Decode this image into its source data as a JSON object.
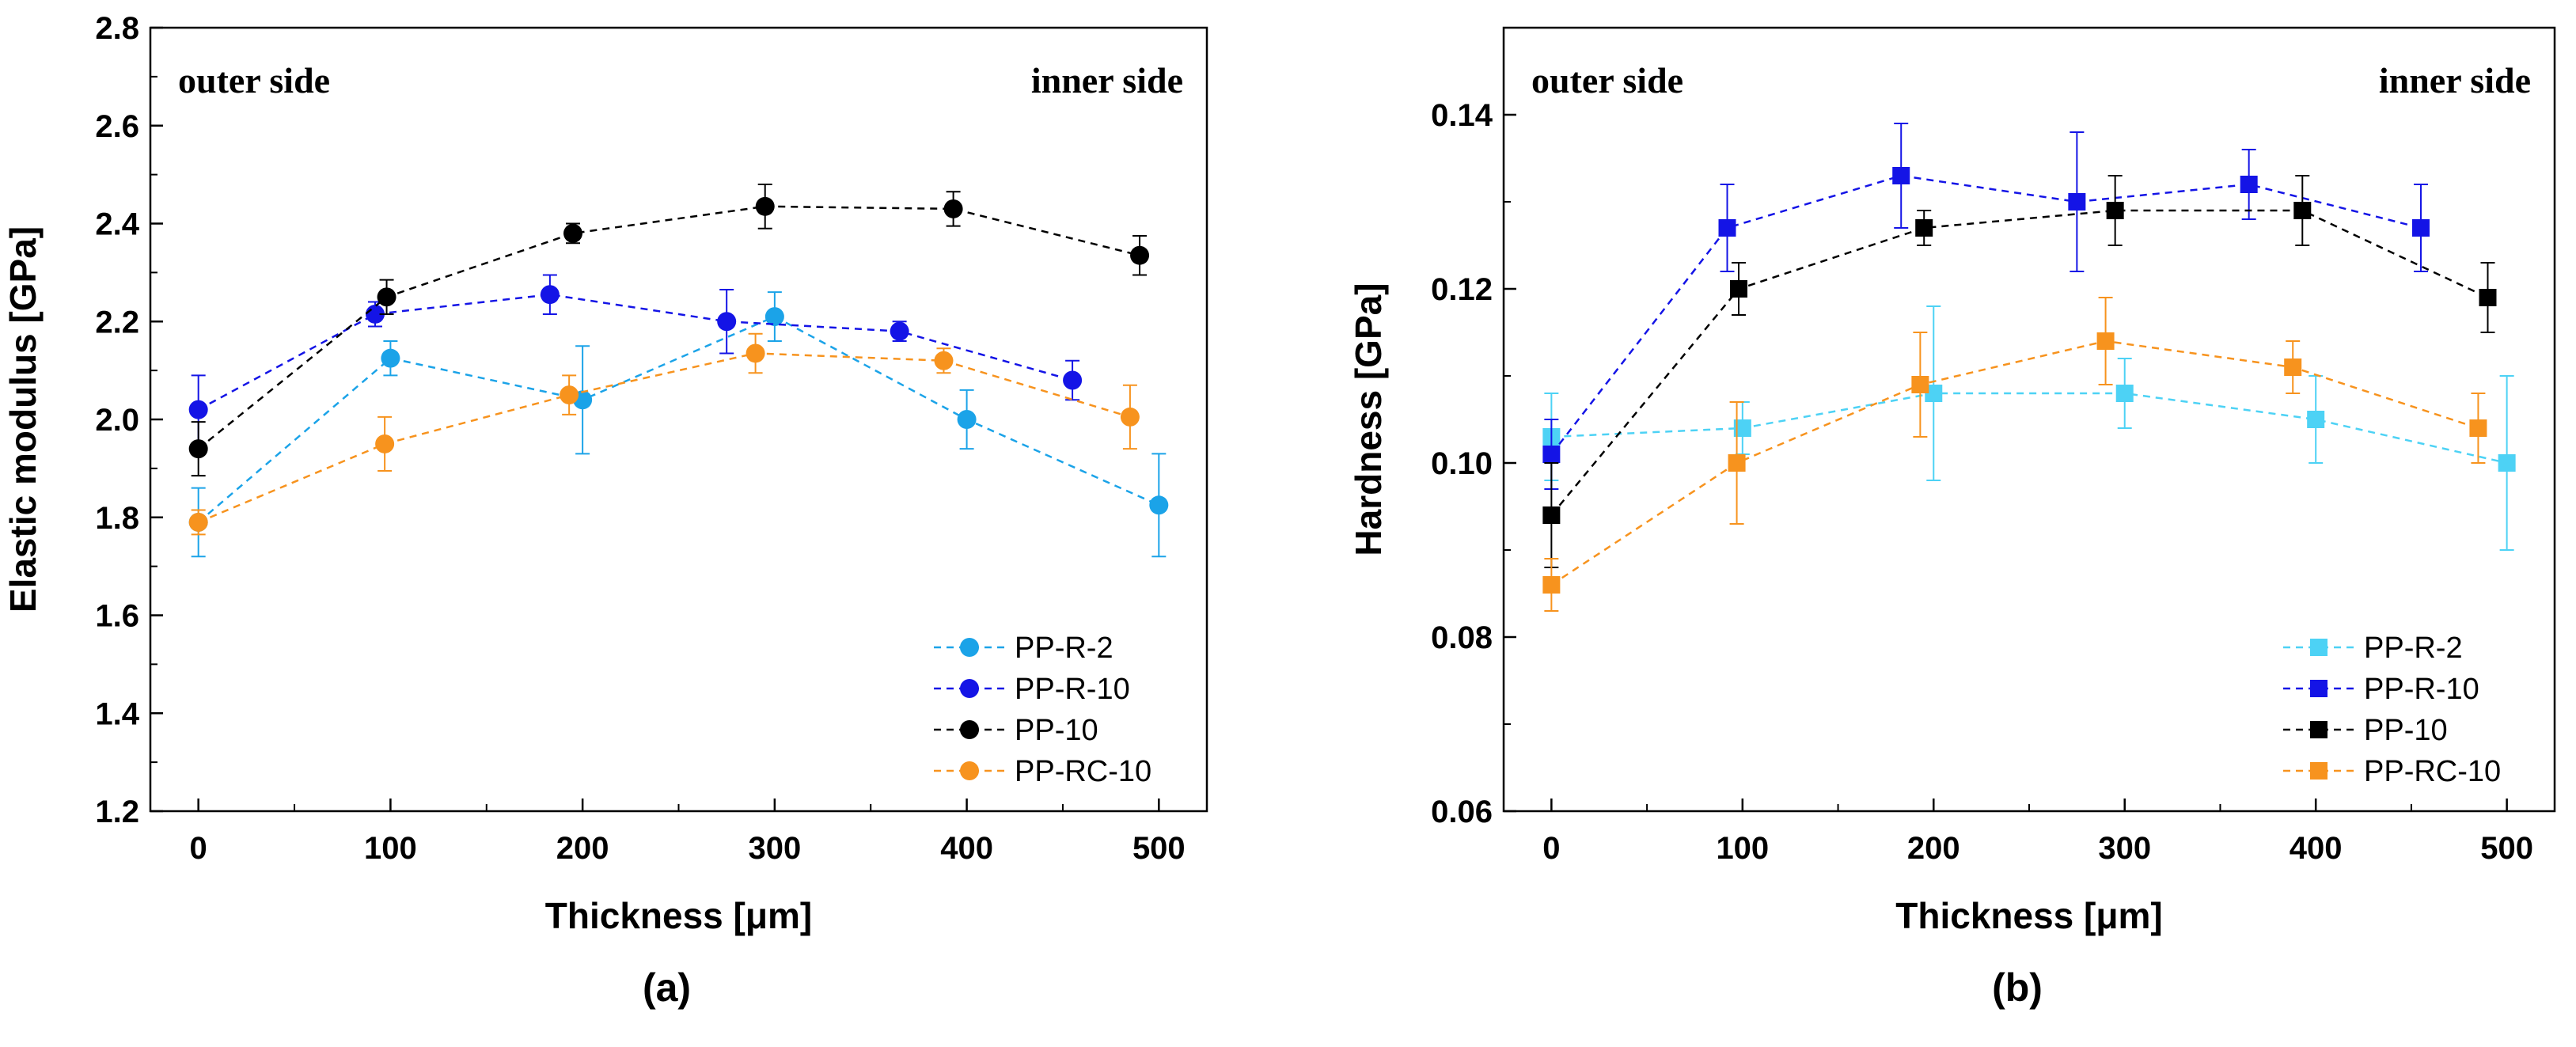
{
  "chart_data": [
    {
      "type": "line",
      "panel_label": "(a)",
      "xlabel": "Thickness [μm]",
      "ylabel": "Elastic modulus [GPa]",
      "xlim": [
        -25,
        525
      ],
      "ylim": [
        1.2,
        2.8
      ],
      "xticks": [
        0,
        100,
        200,
        300,
        400,
        500
      ],
      "xtick_labels": [
        "0",
        "100",
        "200",
        "300",
        "400",
        "500"
      ],
      "yticks": [
        1.2,
        1.4,
        1.6,
        1.8,
        2.0,
        2.2,
        2.4,
        2.6,
        2.8
      ],
      "ytick_labels": [
        "1.2",
        "1.4",
        "1.6",
        "1.8",
        "2.0",
        "2.2",
        "2.4",
        "2.6",
        "2.8"
      ],
      "annotations": [
        "outer side",
        "inner side"
      ],
      "marker": "circle",
      "series": [
        {
          "name": "PP-R-2",
          "color": "#1ba3e8",
          "x": [
            0,
            100,
            200,
            300,
            400,
            500
          ],
          "y": [
            1.79,
            2.125,
            2.04,
            2.21,
            2.0,
            1.825
          ],
          "err": [
            0.07,
            0.035,
            0.11,
            0.05,
            0.06,
            0.105
          ]
        },
        {
          "name": "PP-R-10",
          "color": "#1414e6",
          "x": [
            0,
            92,
            183,
            275,
            365,
            455
          ],
          "y": [
            2.02,
            2.215,
            2.255,
            2.2,
            2.18,
            2.08
          ],
          "err": [
            0.07,
            0.025,
            0.04,
            0.065,
            0.02,
            0.04
          ]
        },
        {
          "name": "PP-10",
          "color": "#000000",
          "x": [
            0,
            98,
            195,
            295,
            393,
            490
          ],
          "y": [
            1.94,
            2.25,
            2.38,
            2.435,
            2.43,
            2.335
          ],
          "err": [
            0.055,
            0.035,
            0.02,
            0.045,
            0.035,
            0.04
          ]
        },
        {
          "name": "PP-RC-10",
          "color": "#f7931e",
          "x": [
            0,
            97,
            193,
            290,
            388,
            485
          ],
          "y": [
            1.79,
            1.95,
            2.05,
            2.135,
            2.12,
            2.005
          ],
          "err": [
            0.025,
            0.055,
            0.04,
            0.04,
            0.025,
            0.065
          ]
        }
      ]
    },
    {
      "type": "line",
      "panel_label": "(b)",
      "xlabel": "Thickness [μm]",
      "ylabel": "Hardness [GPa]",
      "xlim": [
        -25,
        525
      ],
      "ylim": [
        0.06,
        0.15
      ],
      "xticks": [
        0,
        100,
        200,
        300,
        400,
        500
      ],
      "xtick_labels": [
        "0",
        "100",
        "200",
        "300",
        "400",
        "500"
      ],
      "yticks": [
        0.06,
        0.08,
        0.1,
        0.12,
        0.14
      ],
      "ytick_labels": [
        "0.06",
        "0.08",
        "0.10",
        "0.12",
        "0.14"
      ],
      "annotations": [
        "outer side",
        "inner side"
      ],
      "marker": "square",
      "series": [
        {
          "name": "PP-R-2",
          "color": "#4dd2f5",
          "x": [
            0,
            100,
            200,
            300,
            400,
            500
          ],
          "y": [
            0.103,
            0.104,
            0.108,
            0.108,
            0.105,
            0.1
          ],
          "err": [
            0.005,
            0.003,
            0.01,
            0.004,
            0.005,
            0.01
          ]
        },
        {
          "name": "PP-R-10",
          "color": "#1414e6",
          "x": [
            0,
            92,
            183,
            275,
            365,
            455
          ],
          "y": [
            0.101,
            0.127,
            0.133,
            0.13,
            0.132,
            0.127
          ],
          "err": [
            0.004,
            0.005,
            0.006,
            0.008,
            0.004,
            0.005
          ]
        },
        {
          "name": "PP-10",
          "color": "#000000",
          "x": [
            0,
            98,
            195,
            295,
            393,
            490
          ],
          "y": [
            0.094,
            0.12,
            0.127,
            0.129,
            0.129,
            0.119
          ],
          "err": [
            0.006,
            0.003,
            0.002,
            0.004,
            0.004,
            0.004
          ]
        },
        {
          "name": "PP-RC-10",
          "color": "#f7931e",
          "x": [
            0,
            97,
            193,
            290,
            388,
            485
          ],
          "y": [
            0.086,
            0.1,
            0.109,
            0.114,
            0.111,
            0.104
          ],
          "err": [
            0.003,
            0.007,
            0.006,
            0.005,
            0.003,
            0.004
          ]
        }
      ]
    }
  ]
}
